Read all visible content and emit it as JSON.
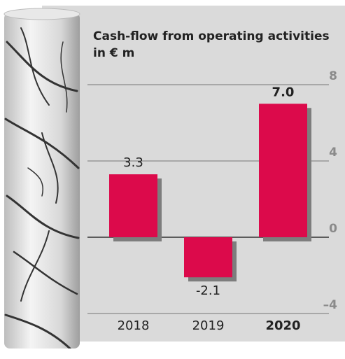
{
  "chart_data": {
    "type": "bar",
    "title": [
      "Cash-flow from operating activities",
      "in € m"
    ],
    "categories": [
      "2018",
      "2019",
      "2020"
    ],
    "values": [
      3.3,
      -2.1,
      7
    ],
    "value_labels": [
      "3.3",
      "-2.1",
      "7.0"
    ],
    "color": "#dc0a4b",
    "highlight_index": 2,
    "ylim": [
      -4,
      8
    ],
    "yticks": [
      8,
      4,
      0,
      {
        "value": -4,
        "label": "–4"
      }
    ],
    "grid": true
  }
}
